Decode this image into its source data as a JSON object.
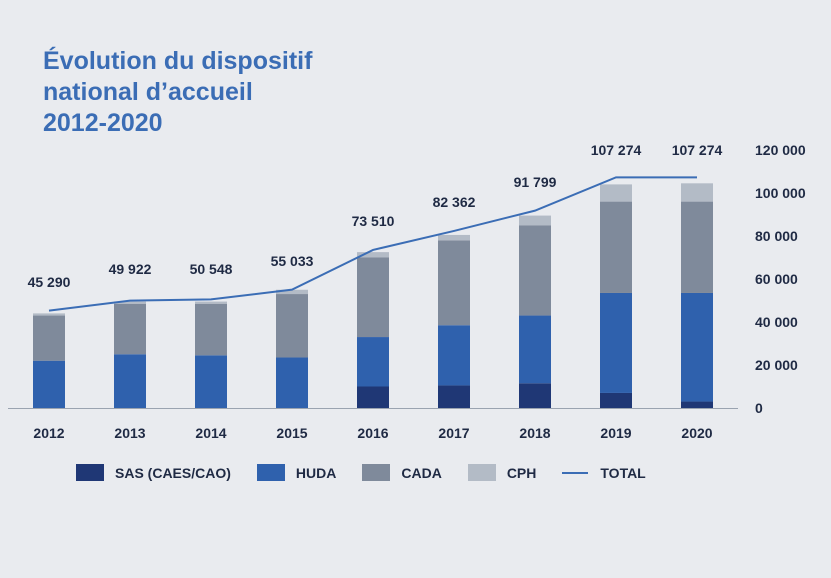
{
  "title": {
    "line1": "Évolution du dispositif",
    "line2": "national d’accueil",
    "line3": "2012-2020"
  },
  "chart_data": {
    "type": "bar",
    "stacked": true,
    "categories": [
      "2012",
      "2013",
      "2014",
      "2015",
      "2016",
      "2017",
      "2018",
      "2019",
      "2020"
    ],
    "series": [
      {
        "name": "SAS (CAES/CAO)",
        "color": "#1f3775",
        "values": [
          0,
          0,
          0,
          0,
          10000,
          10500,
          11500,
          7000,
          3000
        ]
      },
      {
        "name": "HUDA",
        "color": "#2f61ad",
        "values": [
          22000,
          25000,
          24500,
          23500,
          23000,
          28000,
          31500,
          46500,
          50500
        ]
      },
      {
        "name": "CADA",
        "color": "#7f8a9b",
        "values": [
          21000,
          23500,
          24000,
          29500,
          37000,
          39500,
          42000,
          42500,
          42500
        ]
      },
      {
        "name": "CPH",
        "color": "#b3bbc6",
        "values": [
          1000,
          1000,
          1000,
          2000,
          2500,
          2500,
          4500,
          8000,
          8500
        ]
      }
    ],
    "total": {
      "name": "TOTAL",
      "color": "#3b6db5",
      "values": [
        45290,
        49922,
        50548,
        55033,
        73510,
        82362,
        91799,
        107274,
        107274
      ],
      "labels": [
        "45 290",
        "49 922",
        "50 548",
        "55 033",
        "73 510",
        "82 362",
        "91 799",
        "107 274",
        "107 274"
      ]
    },
    "y_ticks": [
      "0",
      "20 000",
      "40 000",
      "60 000",
      "80 000",
      "100 000",
      "120 000"
    ],
    "ylim": [
      0,
      120000
    ],
    "y_axis_position": "right",
    "legend_position": "bottom",
    "grid": false
  }
}
